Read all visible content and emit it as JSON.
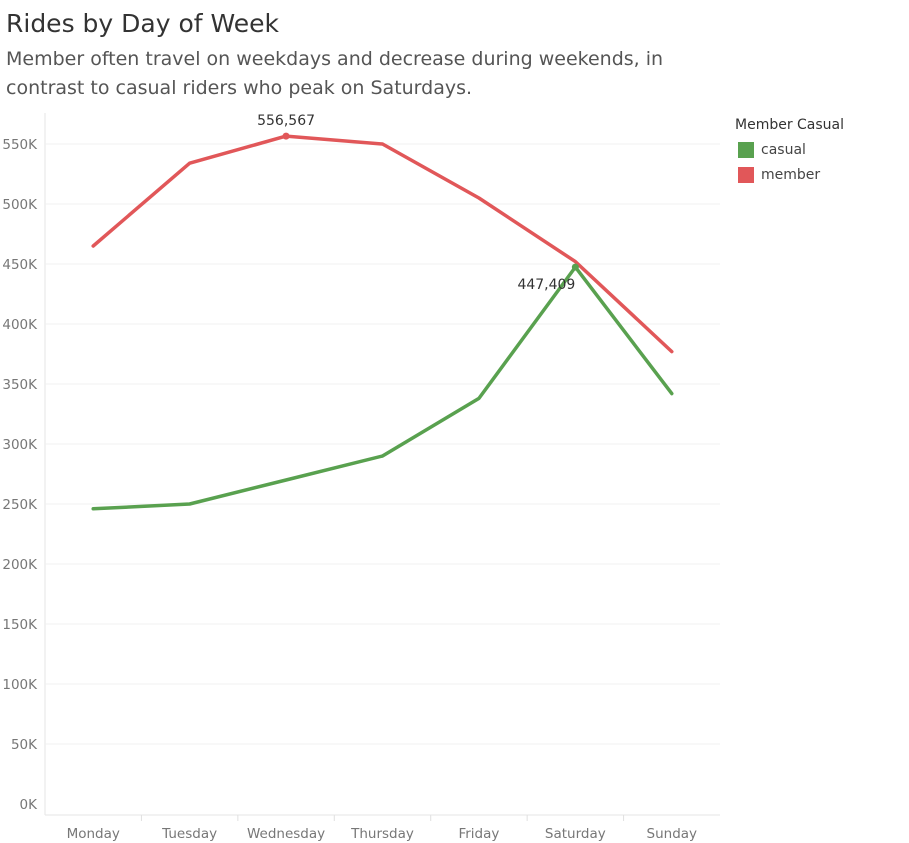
{
  "title": "Rides by Day of Week",
  "subtitle": "Member often travel on weekdays and decrease during weekends, in contrast to casual riders who peak on Saturdays.",
  "legend": {
    "title": "Member Casual",
    "items": [
      {
        "label": "casual",
        "color": "#59a14f"
      },
      {
        "label": "member",
        "color": "#e15759"
      }
    ]
  },
  "chart_data": {
    "type": "line",
    "categories": [
      "Monday",
      "Tuesday",
      "Wednesday",
      "Thursday",
      "Friday",
      "Saturday",
      "Sunday"
    ],
    "series": [
      {
        "name": "casual",
        "color": "#59a14f",
        "values": [
          246000,
          250000,
          270000,
          290000,
          338000,
          447409,
          342000
        ]
      },
      {
        "name": "member",
        "color": "#e15759",
        "values": [
          465000,
          534000,
          556567,
          550000,
          505000,
          452000,
          377000
        ]
      }
    ],
    "yticks": [
      0,
      50000,
      100000,
      150000,
      200000,
      250000,
      300000,
      350000,
      400000,
      450000,
      500000,
      550000
    ],
    "ytick_labels": [
      "0K",
      "50K",
      "100K",
      "150K",
      "200K",
      "250K",
      "300K",
      "350K",
      "400K",
      "450K",
      "500K",
      "550K"
    ],
    "ylim": [
      0,
      580000
    ],
    "annotations": [
      {
        "series": "member",
        "category": "Wednesday",
        "label": "556,567"
      },
      {
        "series": "casual",
        "category": "Saturday",
        "label": "447,409"
      }
    ],
    "grid": true,
    "legend_position": "top-right"
  }
}
